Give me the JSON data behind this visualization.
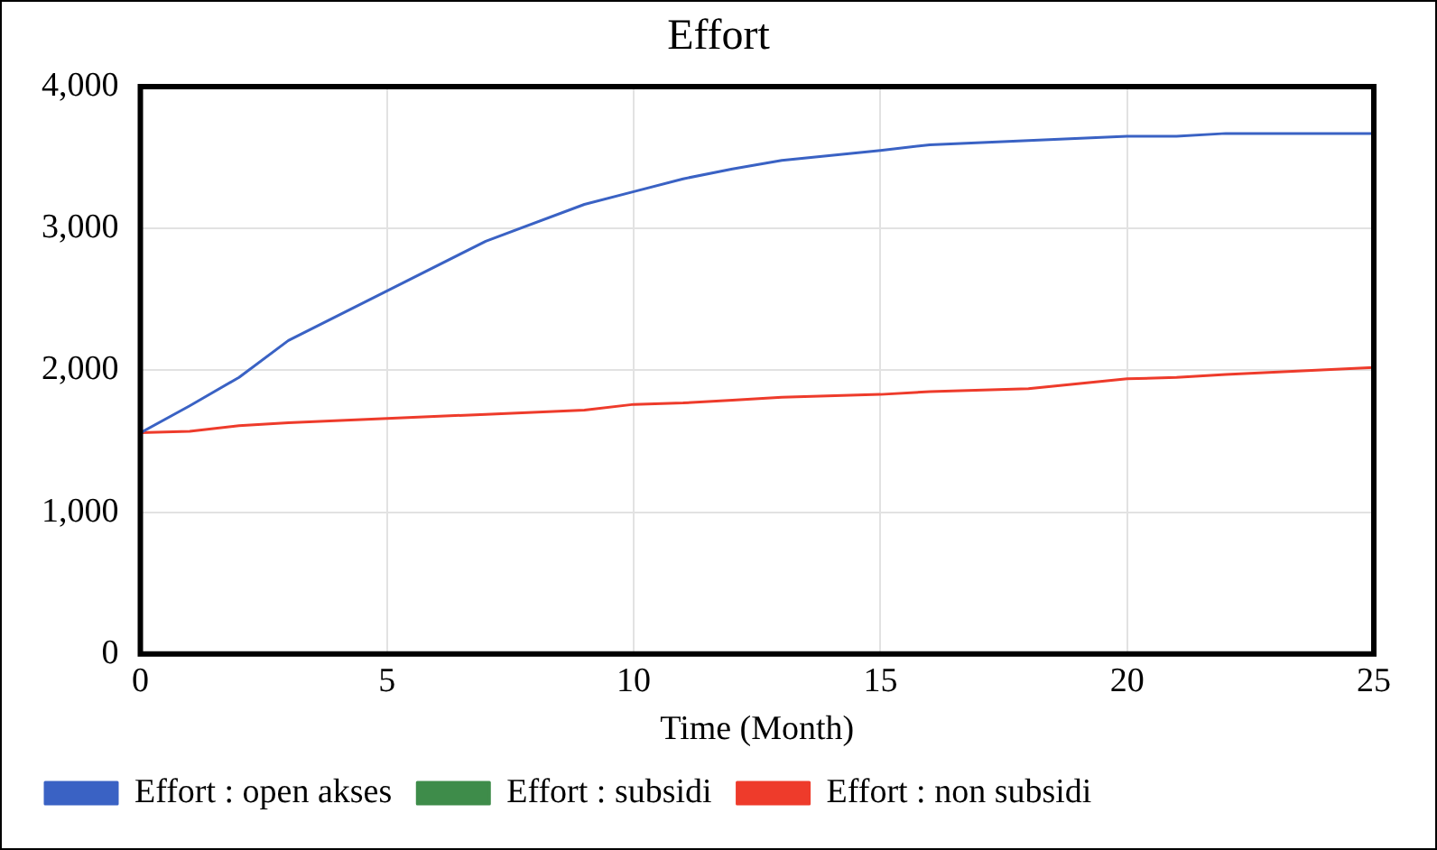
{
  "chart_data": {
    "type": "line",
    "title": "Effort",
    "xlabel": "Time (Month)",
    "x": [
      0,
      1,
      2,
      3,
      5,
      7,
      9,
      10,
      11,
      12,
      13,
      15,
      16,
      18,
      20,
      21,
      22,
      25
    ],
    "series": [
      {
        "name": "Effort : open akses",
        "color": "#3a62c4",
        "values": [
          1560,
          1750,
          1950,
          2210,
          2560,
          2910,
          3170,
          3260,
          3350,
          3420,
          3480,
          3550,
          3590,
          3620,
          3650,
          3650,
          3670,
          3670
        ]
      },
      {
        "name": "Effort : subsidi",
        "color": "#3e8c4a",
        "values": [
          null,
          null,
          null,
          null,
          null,
          null,
          null,
          null,
          null,
          null,
          null,
          null,
          null,
          null,
          null,
          null,
          null,
          null
        ]
      },
      {
        "name": "Effort : non subsidi",
        "color": "#ee3b2b",
        "values": [
          1560,
          1570,
          1610,
          1630,
          1660,
          1690,
          1720,
          1760,
          1770,
          1790,
          1810,
          1830,
          1850,
          1870,
          1940,
          1950,
          1970,
          2020
        ]
      }
    ],
    "xlim": [
      0,
      25
    ],
    "xticks": [
      0,
      5,
      10,
      15,
      20,
      25
    ],
    "ylim": [
      0,
      4000
    ],
    "yticks": [
      {
        "value": 0,
        "label": "0"
      },
      {
        "value": 1000,
        "label": "1,000"
      },
      {
        "value": 2000,
        "label": "2,000"
      },
      {
        "value": 3000,
        "label": "3,000"
      },
      {
        "value": 4000,
        "label": "4,000"
      }
    ],
    "grid": true,
    "legend": "bottom",
    "marker": "none",
    "line_style": "solid"
  }
}
